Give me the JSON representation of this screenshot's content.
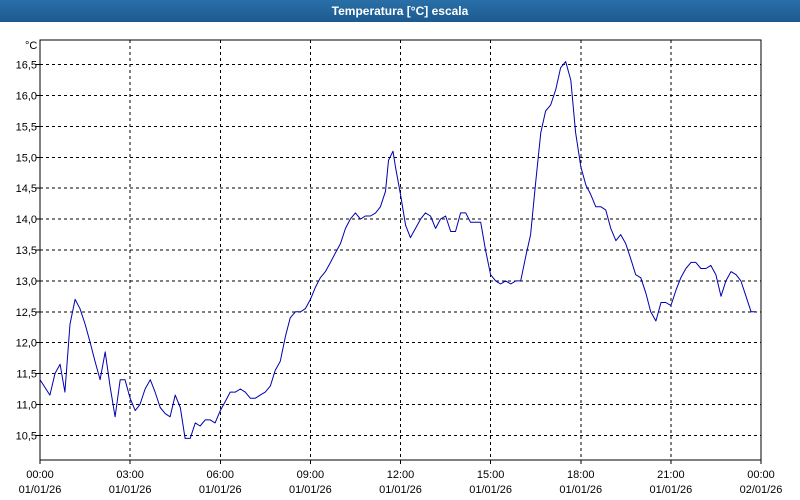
{
  "window": {
    "title": "Temperatura [°C] escala"
  },
  "chart_data": {
    "type": "line",
    "title": "Temperatura [°C] escala",
    "ylabel": "°C",
    "xlabel": "",
    "grid": true,
    "x_unit": "hours",
    "xlim": [
      0,
      24
    ],
    "ylim": [
      10.1,
      16.9
    ],
    "y_ticks": [
      {
        "value": 10.5,
        "label": "10,5"
      },
      {
        "value": 11.0,
        "label": "11,0"
      },
      {
        "value": 11.5,
        "label": "11,5"
      },
      {
        "value": 12.0,
        "label": "12,0"
      },
      {
        "value": 12.5,
        "label": "12,5"
      },
      {
        "value": 13.0,
        "label": "13,0"
      },
      {
        "value": 13.5,
        "label": "13,5"
      },
      {
        "value": 14.0,
        "label": "14,0"
      },
      {
        "value": 14.5,
        "label": "14,5"
      },
      {
        "value": 15.0,
        "label": "15,0"
      },
      {
        "value": 15.5,
        "label": "15,5"
      },
      {
        "value": 16.0,
        "label": "16,0"
      },
      {
        "value": 16.5,
        "label": "16,5"
      }
    ],
    "x_ticks": [
      {
        "value": 0,
        "time": "00:00",
        "date": "01/01/26"
      },
      {
        "value": 3,
        "time": "03:00",
        "date": "01/01/26"
      },
      {
        "value": 6,
        "time": "06:00",
        "date": "01/01/26"
      },
      {
        "value": 9,
        "time": "09:00",
        "date": "01/01/26"
      },
      {
        "value": 12,
        "time": "12:00",
        "date": "01/01/26"
      },
      {
        "value": 15,
        "time": "15:00",
        "date": "01/01/26"
      },
      {
        "value": 18,
        "time": "18:00",
        "date": "01/01/26"
      },
      {
        "value": 21,
        "time": "21:00",
        "date": "01/01/26"
      },
      {
        "value": 24,
        "time": "00:00",
        "date": "02/01/26"
      }
    ],
    "series": [
      {
        "color": "#0000b0",
        "points": [
          [
            0.0,
            11.4
          ],
          [
            0.33,
            11.15
          ],
          [
            0.5,
            11.5
          ],
          [
            0.67,
            11.65
          ],
          [
            0.83,
            11.2
          ],
          [
            1.0,
            12.3
          ],
          [
            1.17,
            12.7
          ],
          [
            1.33,
            12.55
          ],
          [
            1.5,
            12.3
          ],
          [
            1.67,
            12.0
          ],
          [
            1.83,
            11.7
          ],
          [
            2.0,
            11.4
          ],
          [
            2.17,
            11.85
          ],
          [
            2.33,
            11.3
          ],
          [
            2.5,
            10.8
          ],
          [
            2.67,
            11.4
          ],
          [
            2.83,
            11.4
          ],
          [
            3.0,
            11.1
          ],
          [
            3.17,
            10.9
          ],
          [
            3.33,
            11.0
          ],
          [
            3.5,
            11.25
          ],
          [
            3.67,
            11.4
          ],
          [
            3.83,
            11.2
          ],
          [
            4.0,
            10.95
          ],
          [
            4.17,
            10.85
          ],
          [
            4.33,
            10.8
          ],
          [
            4.5,
            11.15
          ],
          [
            4.67,
            10.95
          ],
          [
            4.83,
            10.45
          ],
          [
            5.0,
            10.45
          ],
          [
            5.17,
            10.7
          ],
          [
            5.33,
            10.65
          ],
          [
            5.5,
            10.75
          ],
          [
            5.67,
            10.75
          ],
          [
            5.83,
            10.7
          ],
          [
            6.0,
            10.9
          ],
          [
            6.17,
            11.05
          ],
          [
            6.33,
            11.2
          ],
          [
            6.5,
            11.2
          ],
          [
            6.67,
            11.25
          ],
          [
            6.83,
            11.2
          ],
          [
            7.0,
            11.1
          ],
          [
            7.17,
            11.1
          ],
          [
            7.33,
            11.15
          ],
          [
            7.5,
            11.2
          ],
          [
            7.67,
            11.3
          ],
          [
            7.83,
            11.55
          ],
          [
            8.0,
            11.7
          ],
          [
            8.17,
            12.1
          ],
          [
            8.33,
            12.4
          ],
          [
            8.5,
            12.5
          ],
          [
            8.67,
            12.5
          ],
          [
            8.83,
            12.55
          ],
          [
            9.0,
            12.7
          ],
          [
            9.17,
            12.9
          ],
          [
            9.33,
            13.05
          ],
          [
            9.5,
            13.15
          ],
          [
            9.67,
            13.3
          ],
          [
            9.83,
            13.45
          ],
          [
            10.0,
            13.6
          ],
          [
            10.17,
            13.85
          ],
          [
            10.33,
            14.0
          ],
          [
            10.5,
            14.1
          ],
          [
            10.67,
            14.0
          ],
          [
            10.83,
            14.05
          ],
          [
            11.0,
            14.05
          ],
          [
            11.17,
            14.1
          ],
          [
            11.33,
            14.2
          ],
          [
            11.5,
            14.45
          ],
          [
            11.6,
            14.95
          ],
          [
            11.75,
            15.1
          ],
          [
            11.83,
            14.85
          ],
          [
            12.0,
            14.4
          ],
          [
            12.17,
            13.9
          ],
          [
            12.33,
            13.7
          ],
          [
            12.5,
            13.85
          ],
          [
            12.67,
            14.0
          ],
          [
            12.83,
            14.1
          ],
          [
            13.0,
            14.05
          ],
          [
            13.17,
            13.85
          ],
          [
            13.33,
            14.0
          ],
          [
            13.5,
            14.05
          ],
          [
            13.67,
            13.8
          ],
          [
            13.83,
            13.8
          ],
          [
            14.0,
            14.1
          ],
          [
            14.17,
            14.1
          ],
          [
            14.33,
            13.95
          ],
          [
            14.5,
            13.95
          ],
          [
            14.67,
            13.95
          ],
          [
            14.83,
            13.5
          ],
          [
            15.0,
            13.1
          ],
          [
            15.17,
            13.0
          ],
          [
            15.33,
            12.95
          ],
          [
            15.5,
            13.0
          ],
          [
            15.67,
            12.95
          ],
          [
            15.83,
            13.0
          ],
          [
            16.0,
            13.0
          ],
          [
            16.17,
            13.4
          ],
          [
            16.33,
            13.75
          ],
          [
            16.5,
            14.6
          ],
          [
            16.67,
            15.4
          ],
          [
            16.83,
            15.75
          ],
          [
            17.0,
            15.85
          ],
          [
            17.17,
            16.1
          ],
          [
            17.33,
            16.45
          ],
          [
            17.5,
            16.55
          ],
          [
            17.67,
            16.25
          ],
          [
            17.83,
            15.4
          ],
          [
            18.0,
            14.85
          ],
          [
            18.17,
            14.55
          ],
          [
            18.33,
            14.4
          ],
          [
            18.5,
            14.2
          ],
          [
            18.67,
            14.2
          ],
          [
            18.83,
            14.15
          ],
          [
            19.0,
            13.85
          ],
          [
            19.17,
            13.65
          ],
          [
            19.33,
            13.75
          ],
          [
            19.5,
            13.6
          ],
          [
            19.67,
            13.35
          ],
          [
            19.83,
            13.1
          ],
          [
            20.0,
            13.05
          ],
          [
            20.17,
            12.8
          ],
          [
            20.33,
            12.5
          ],
          [
            20.5,
            12.35
          ],
          [
            20.67,
            12.65
          ],
          [
            20.83,
            12.65
          ],
          [
            21.0,
            12.6
          ],
          [
            21.17,
            12.85
          ],
          [
            21.33,
            13.05
          ],
          [
            21.5,
            13.2
          ],
          [
            21.67,
            13.3
          ],
          [
            21.83,
            13.3
          ],
          [
            22.0,
            13.2
          ],
          [
            22.17,
            13.2
          ],
          [
            22.33,
            13.25
          ],
          [
            22.5,
            13.1
          ],
          [
            22.67,
            12.75
          ],
          [
            22.83,
            13.0
          ],
          [
            23.0,
            13.15
          ],
          [
            23.17,
            13.1
          ],
          [
            23.33,
            13.0
          ],
          [
            23.5,
            12.75
          ],
          [
            23.67,
            12.5
          ],
          [
            23.83,
            12.5
          ]
        ]
      }
    ]
  }
}
